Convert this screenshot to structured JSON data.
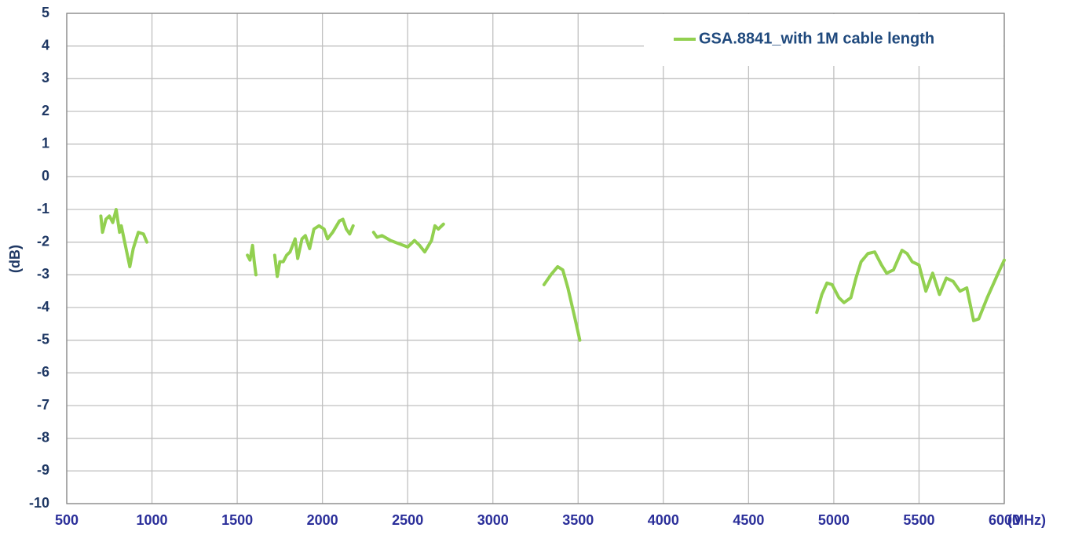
{
  "chart_data": {
    "type": "line",
    "xlabel": "(MHz)",
    "ylabel": "(dB)",
    "xlim": [
      500,
      6000
    ],
    "xticks": [
      500,
      1000,
      1500,
      2000,
      2500,
      3000,
      3500,
      4000,
      4500,
      5000,
      5500,
      6000
    ],
    "ylim": [
      -10,
      5
    ],
    "yticks": [
      -10,
      -9,
      -8,
      -7,
      -6,
      -5,
      -4,
      -3,
      -2,
      -1,
      0,
      1,
      2,
      3,
      4,
      5
    ],
    "grid": true,
    "legend": "top right",
    "x": [
      700,
      710,
      730,
      750,
      770,
      790,
      810,
      820,
      840,
      870,
      890,
      920,
      950,
      970,
      null,
      1560,
      1575,
      1590,
      1600,
      1610,
      null,
      1720,
      1735,
      1750,
      1770,
      1790,
      1810,
      1840,
      1855,
      1880,
      1900,
      1925,
      1950,
      1980,
      2010,
      2030,
      2060,
      2100,
      2120,
      2140,
      2160,
      2180,
      null,
      2300,
      2320,
      2350,
      2400,
      2450,
      2500,
      2540,
      2570,
      2600,
      2640,
      2660,
      2680,
      2710,
      null,
      3300,
      3340,
      3380,
      3410,
      3440,
      3480,
      3510,
      null,
      4900,
      4930,
      4960,
      4990,
      5030,
      5060,
      5100,
      5130,
      5160,
      5200,
      5240,
      5280,
      5310,
      5350,
      5400,
      5430,
      5460,
      5500,
      5540,
      5580,
      5620,
      5660,
      5700,
      5740,
      5780,
      5820,
      5850,
      5900,
      5960,
      6000
    ],
    "series": [
      {
        "name": "GSA.8841_with 1M cable length",
        "color": "#92d050",
        "values": [
          -1.2,
          -1.7,
          -1.3,
          -1.2,
          -1.4,
          -1.0,
          -1.7,
          -1.5,
          -2.0,
          -2.75,
          -2.2,
          -1.7,
          -1.75,
          -2.0,
          null,
          -2.4,
          -2.55,
          -2.1,
          -2.6,
          -3.0,
          null,
          -2.4,
          -3.05,
          -2.6,
          -2.6,
          -2.4,
          -2.3,
          -1.9,
          -2.5,
          -1.9,
          -1.8,
          -2.2,
          -1.6,
          -1.5,
          -1.6,
          -1.9,
          -1.7,
          -1.35,
          -1.3,
          -1.6,
          -1.75,
          -1.5,
          null,
          -1.7,
          -1.85,
          -1.8,
          -1.95,
          -2.05,
          -2.15,
          -1.95,
          -2.1,
          -2.3,
          -1.95,
          -1.5,
          -1.6,
          -1.45,
          null,
          -3.3,
          -3.0,
          -2.75,
          -2.85,
          -3.4,
          -4.3,
          -5.0,
          null,
          -4.15,
          -3.6,
          -3.25,
          -3.3,
          -3.7,
          -3.85,
          -3.7,
          -3.1,
          -2.6,
          -2.35,
          -2.3,
          -2.7,
          -2.95,
          -2.85,
          -2.25,
          -2.35,
          -2.6,
          -2.7,
          -3.5,
          -2.95,
          -3.6,
          -3.1,
          -3.2,
          -3.5,
          -3.4,
          -4.4,
          -4.35,
          -3.7,
          -3.0,
          -2.55
        ]
      }
    ]
  }
}
